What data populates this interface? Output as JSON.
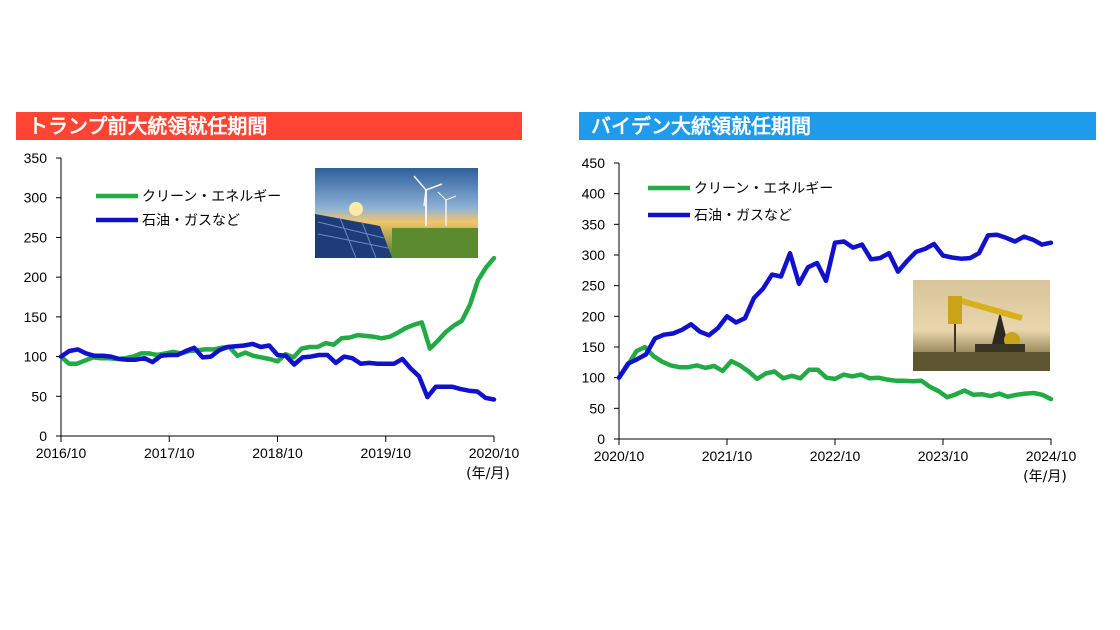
{
  "colors": {
    "left_banner": "#FF4433",
    "right_banner": "#1E9BEA",
    "clean_energy": "#22AA44",
    "oil_gas": "#1111CC",
    "axis": "#000000"
  },
  "chart_data": [
    {
      "type": "line",
      "title": "トランプ前大統領就任期間",
      "ylim": [
        0,
        350
      ],
      "yticks": [
        0,
        50,
        100,
        150,
        200,
        250,
        300,
        350
      ],
      "xticks": [
        "2016/10",
        "2017/10",
        "2018/10",
        "2019/10",
        "2020/10"
      ],
      "x_unit": "(年/月)",
      "x_start": "2016/10",
      "x_end": "2020/10",
      "grid": false,
      "legend_position": "top-left",
      "image": "solar-panels-and-wind-turbines-photo",
      "series": [
        {
          "name": "クリーン・エネルギー",
          "color": "#22AA44",
          "values": [
            100,
            91,
            91,
            95,
            99,
            98,
            98,
            97,
            98,
            100,
            104,
            104,
            102,
            104,
            106,
            104,
            107,
            108,
            109,
            109,
            111,
            112,
            101,
            105,
            101,
            99,
            97,
            94,
            103,
            99,
            110,
            112,
            112,
            117,
            115,
            123,
            124,
            127,
            126,
            125,
            123,
            125,
            130,
            136,
            140,
            143,
            110,
            120,
            131,
            139,
            145,
            165,
            196,
            212,
            224
          ]
        },
        {
          "name": "石油・ガスなど",
          "color": "#1111CC",
          "values": [
            100,
            107,
            109,
            104,
            101,
            101,
            100,
            97,
            96,
            96,
            98,
            93,
            101,
            102,
            102,
            107,
            111,
            99,
            100,
            108,
            112,
            113,
            114,
            116,
            112,
            114,
            102,
            101,
            90,
            99,
            100,
            102,
            102,
            92,
            100,
            98,
            91,
            92,
            91,
            91,
            91,
            97,
            85,
            75,
            49,
            62,
            62,
            62,
            59,
            57,
            56,
            48,
            46
          ]
        }
      ]
    },
    {
      "type": "line",
      "title": "バイデン大統領就任期間",
      "ylim": [
        0,
        450
      ],
      "yticks": [
        0,
        50,
        100,
        150,
        200,
        250,
        300,
        350,
        400,
        450
      ],
      "xticks": [
        "2020/10",
        "2021/10",
        "2022/10",
        "2023/10",
        "2024/10"
      ],
      "x_unit": "(年/月)",
      "x_start": "2020/10",
      "x_end": "2024/10",
      "grid": false,
      "legend_position": "top-left",
      "image": "oil-pumpjack-photo",
      "series": [
        {
          "name": "クリーン・エネルギー",
          "color": "#22AA44",
          "values": [
            100,
            120,
            143,
            150,
            135,
            126,
            120,
            117,
            117,
            120,
            116,
            119,
            111,
            127,
            120,
            110,
            98,
            107,
            110,
            99,
            103,
            99,
            113,
            113,
            100,
            98,
            105,
            102,
            105,
            99,
            100,
            97,
            95,
            95,
            94,
            95,
            85,
            78,
            68,
            73,
            79,
            72,
            73,
            70,
            74,
            69,
            72,
            74,
            75,
            72,
            65
          ]
        },
        {
          "name": "石油・ガスなど",
          "color": "#1111CC",
          "values": [
            100,
            123,
            130,
            138,
            164,
            170,
            172,
            178,
            187,
            175,
            169,
            181,
            200,
            190,
            197,
            230,
            245,
            268,
            265,
            303,
            253,
            280,
            287,
            258,
            320,
            322,
            312,
            317,
            293,
            295,
            303,
            273,
            290,
            305,
            310,
            318,
            299,
            296,
            294,
            295,
            303,
            332,
            333,
            328,
            322,
            330,
            325,
            317,
            320
          ]
        }
      ]
    }
  ]
}
